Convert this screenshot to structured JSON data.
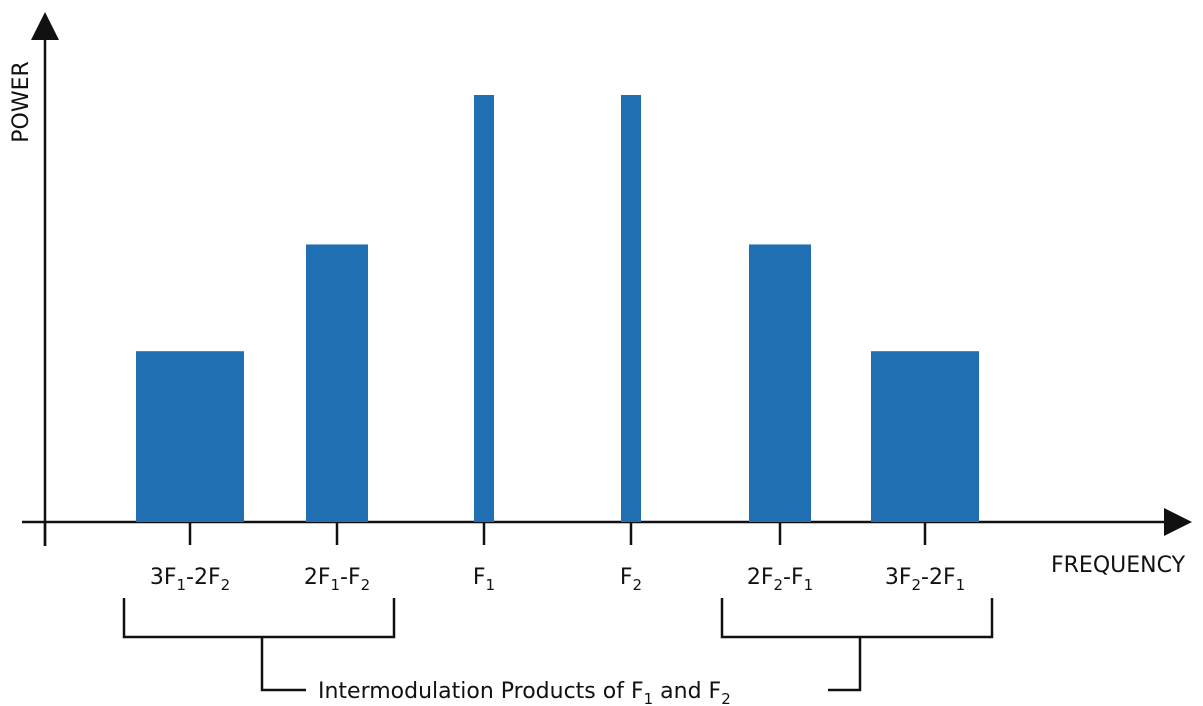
{
  "chart_data": {
    "type": "bar",
    "xlabel": "FREQUENCY",
    "ylabel": "POWER",
    "bar_color": "#1f6fb2",
    "bars": [
      {
        "label": "3F1-2F2",
        "power": 0.4
      },
      {
        "label": "2F1-F2",
        "power": 0.65
      },
      {
        "label": "F1",
        "power": 1.0
      },
      {
        "label": "F2",
        "power": 1.0
      },
      {
        "label": "2F2-F1",
        "power": 0.65
      },
      {
        "label": "3F2-2F1",
        "power": 0.4
      }
    ]
  },
  "tick_labels": [
    {
      "main": [
        "3F",
        "-2F"
      ],
      "subs": [
        "1",
        "2"
      ]
    },
    {
      "main": [
        "2F",
        "-F"
      ],
      "subs": [
        "1",
        "2"
      ]
    },
    {
      "main": [
        "F"
      ],
      "subs": [
        "1"
      ]
    },
    {
      "main": [
        "F"
      ],
      "subs": [
        "2"
      ]
    },
    {
      "main": [
        "2F",
        "-F"
      ],
      "subs": [
        "2",
        "1"
      ]
    },
    {
      "main": [
        "3F",
        "-2F"
      ],
      "subs": [
        "2",
        "1"
      ]
    }
  ],
  "caption": {
    "text_1": "Intermodulation Products of F",
    "sub_1": "1",
    "text_2": " and F",
    "sub_2": "2"
  },
  "axis_labels": {
    "x": "FREQUENCY",
    "y": "POWER"
  }
}
